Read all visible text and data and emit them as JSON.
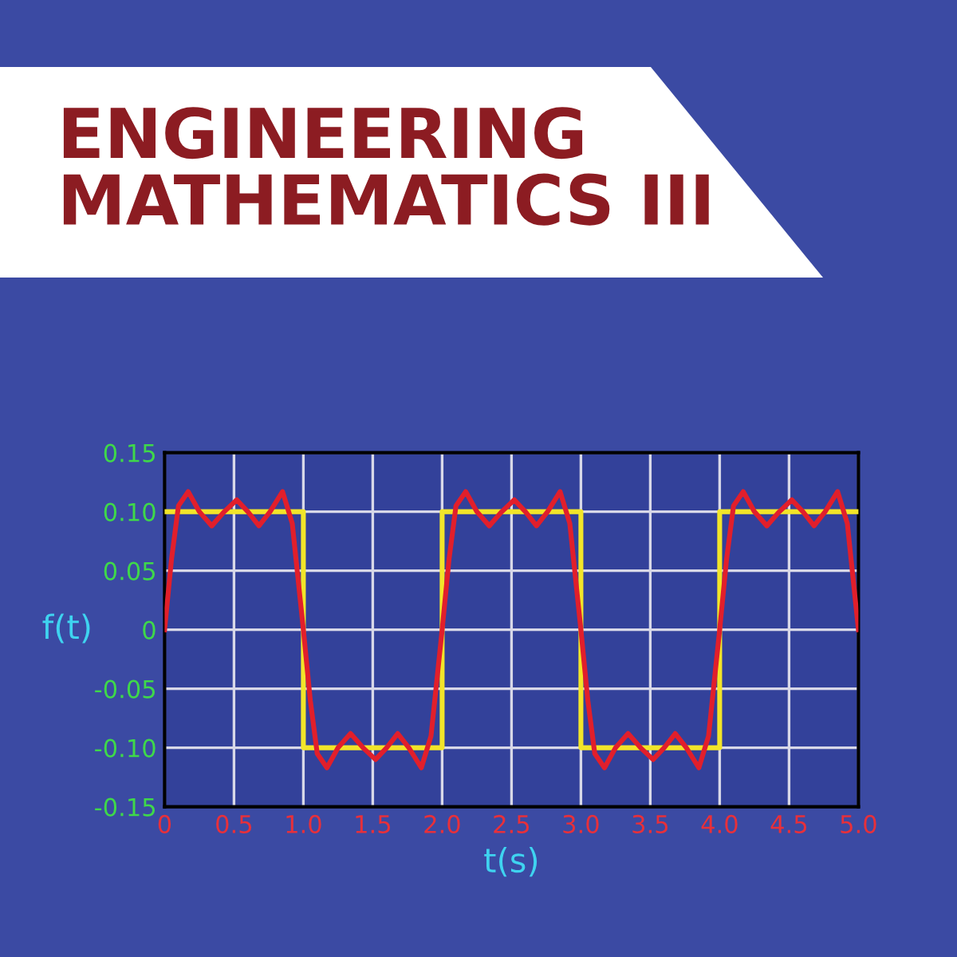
{
  "chart_data": {
    "type": "line",
    "title": "ENGINEERING\nMATHEMATICS III",
    "xlabel": "t(s)",
    "ylabel": "f(t)",
    "xlim": [
      0,
      5
    ],
    "xticks": [
      0,
      0.5,
      {
        "value": 1,
        "label": "1.0"
      },
      1.5,
      {
        "value": 2,
        "label": "2.0"
      },
      2.5,
      {
        "value": 3,
        "label": "3.0"
      },
      3.5,
      {
        "value": 4,
        "label": "4.0"
      },
      4.5,
      {
        "value": 5,
        "label": "5.0"
      }
    ],
    "ylim": [
      -0.15,
      0.15
    ],
    "yticks": [
      {
        "value": -0.15,
        "label": "-0.15"
      },
      {
        "value": -0.1,
        "label": "-0.10"
      },
      {
        "value": -0.05,
        "label": "-0.05"
      },
      0,
      0.05,
      {
        "value": 0.1,
        "label": "0.10"
      },
      0.15
    ],
    "grid": true,
    "series": [
      {
        "type": "step",
        "color": "#f2e529",
        "x": [
          0,
          1,
          2,
          3,
          4,
          5
        ],
        "values": [
          0.1,
          -0.1,
          0.1,
          -0.1,
          0.1,
          0.1
        ]
      },
      {
        "color": "#e11f2b",
        "x": [
          0,
          0.05,
          0.1,
          0.17,
          0.25,
          0.34,
          0.43,
          0.52,
          0.6,
          0.68,
          0.76,
          0.85,
          0.92,
          1,
          1.05,
          1.1,
          1.17,
          1.25,
          1.34,
          1.43,
          1.52,
          1.6,
          1.68,
          1.76,
          1.85,
          1.92,
          2,
          2.05,
          2.1,
          2.17,
          2.25,
          2.34,
          2.43,
          2.52,
          2.6,
          2.68,
          2.76,
          2.85,
          2.92,
          3,
          3.05,
          3.1,
          3.17,
          3.25,
          3.34,
          3.43,
          3.52,
          3.6,
          3.68,
          3.76,
          3.85,
          3.92,
          4,
          4.05,
          4.1,
          4.17,
          4.25,
          4.34,
          4.43,
          4.52,
          4.6,
          4.68,
          4.76,
          4.85,
          4.92,
          5
        ],
        "values": [
          0,
          0.06,
          0.105,
          0.117,
          0.1,
          0.088,
          0.1,
          0.11,
          0.1,
          0.088,
          0.1,
          0.117,
          0.09,
          0,
          -0.06,
          -0.105,
          -0.117,
          -0.1,
          -0.088,
          -0.1,
          -0.11,
          -0.1,
          -0.088,
          -0.1,
          -0.117,
          -0.09,
          0,
          0.06,
          0.105,
          0.117,
          0.1,
          0.088,
          0.1,
          0.11,
          0.1,
          0.088,
          0.1,
          0.117,
          0.09,
          0,
          -0.06,
          -0.105,
          -0.117,
          -0.1,
          -0.088,
          -0.1,
          -0.11,
          -0.1,
          -0.088,
          -0.1,
          -0.117,
          -0.09,
          0,
          0.06,
          0.105,
          0.117,
          0.1,
          0.088,
          0.1,
          0.11,
          0.1,
          0.088,
          0.1,
          0.117,
          0.09,
          0
        ]
      }
    ]
  }
}
